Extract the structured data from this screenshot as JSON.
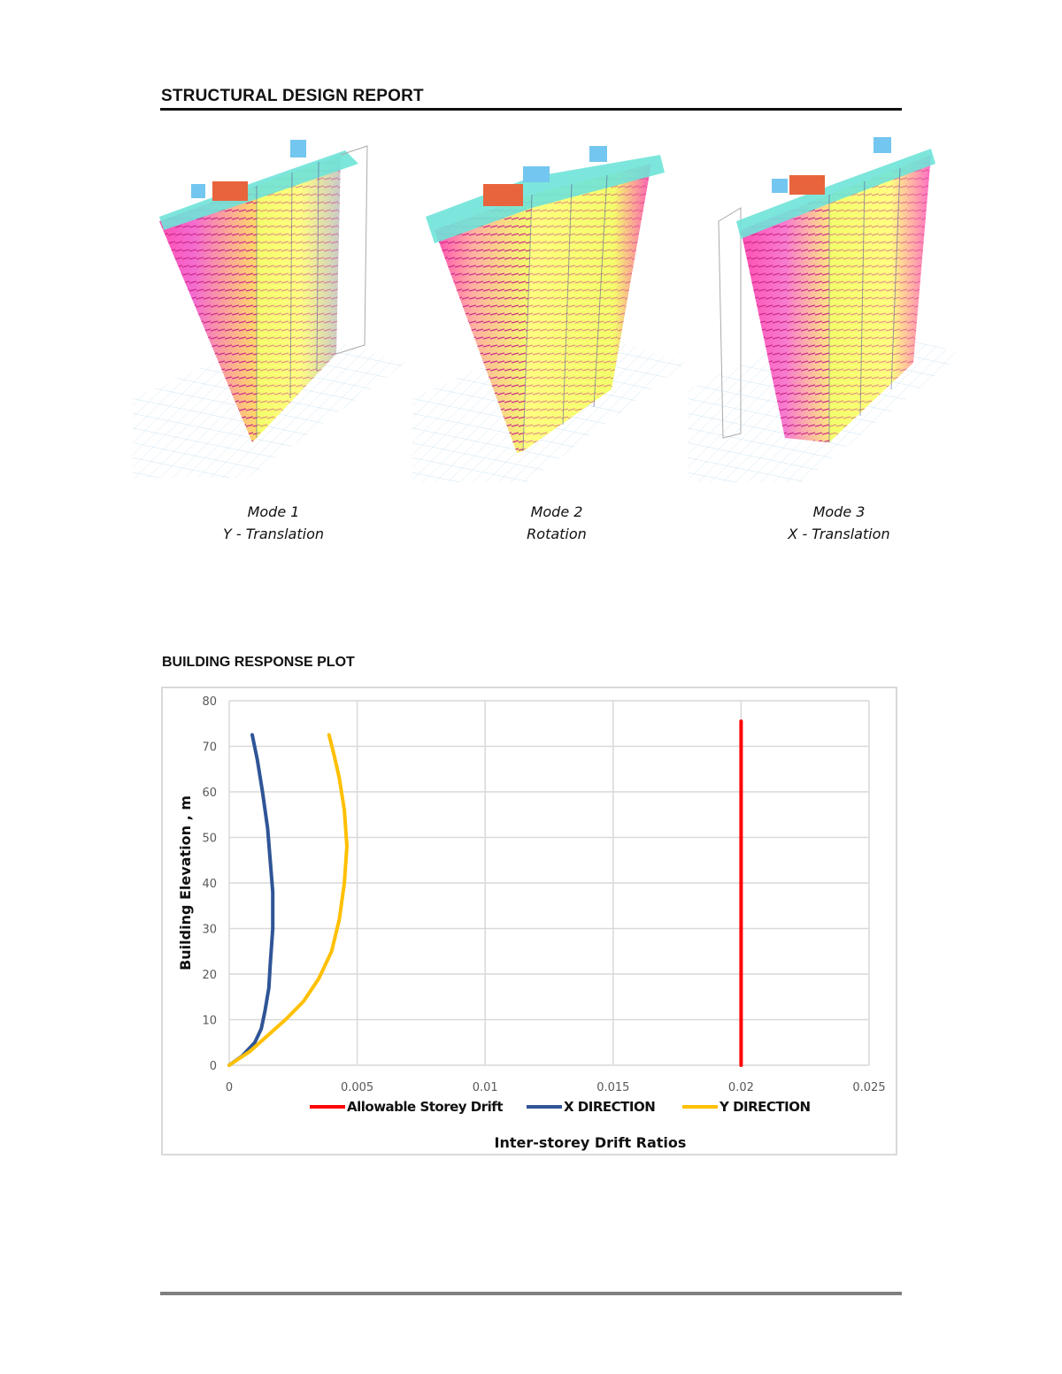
{
  "report": {
    "title": "STRUCTURAL DESIGN REPORT"
  },
  "modes": [
    {
      "label": "Mode 1",
      "description": "Y - Translation"
    },
    {
      "label": "Mode 2",
      "description": "Rotation"
    },
    {
      "label": "Mode 3",
      "description": "X - Translation"
    }
  ],
  "section": {
    "title": "BUILDING RESPONSE PLOT"
  },
  "colors": {
    "allowable": "#ff0000",
    "x_direction": "#2f5597",
    "y_direction": "#ffc000",
    "grid": "#d9d9d9"
  },
  "chart_data": {
    "type": "line",
    "title": "",
    "xlabel": "Inter-storey Drift Ratios",
    "ylabel": "Building Elevation , m",
    "xlim": [
      0,
      0.025
    ],
    "ylim": [
      0,
      80
    ],
    "xticks": [
      "0",
      "0.005",
      "0.01",
      "0.015",
      "0.02",
      "0.025"
    ],
    "yticks": [
      "0",
      "10",
      "20",
      "30",
      "40",
      "50",
      "60",
      "70",
      "80"
    ],
    "legend_position": "bottom",
    "series": [
      {
        "name": "Allowable Storey Drift",
        "color": "#ff0000",
        "x": [
          0.02,
          0.02
        ],
        "y": [
          0,
          75.5
        ]
      },
      {
        "name": "X DIRECTION",
        "color": "#2f5597",
        "x": [
          0,
          0.0005,
          0.001,
          0.00125,
          0.0014,
          0.00155,
          0.0016,
          0.0017,
          0.0017,
          0.0016,
          0.0015,
          0.0013,
          0.0011,
          0.0009
        ],
        "y": [
          0,
          2,
          5,
          8,
          12,
          17,
          22,
          30,
          38,
          45,
          52,
          60,
          67,
          72.5
        ]
      },
      {
        "name": "Y DIRECTION",
        "color": "#ffc000",
        "x": [
          0,
          0.0008,
          0.0016,
          0.0022,
          0.0029,
          0.0035,
          0.004,
          0.0043,
          0.0045,
          0.0046,
          0.0045,
          0.0043,
          0.0041,
          0.0039
        ],
        "y": [
          0,
          3,
          7,
          10,
          14,
          19,
          25,
          32,
          40,
          48,
          56,
          63,
          68,
          72.5
        ]
      }
    ]
  }
}
